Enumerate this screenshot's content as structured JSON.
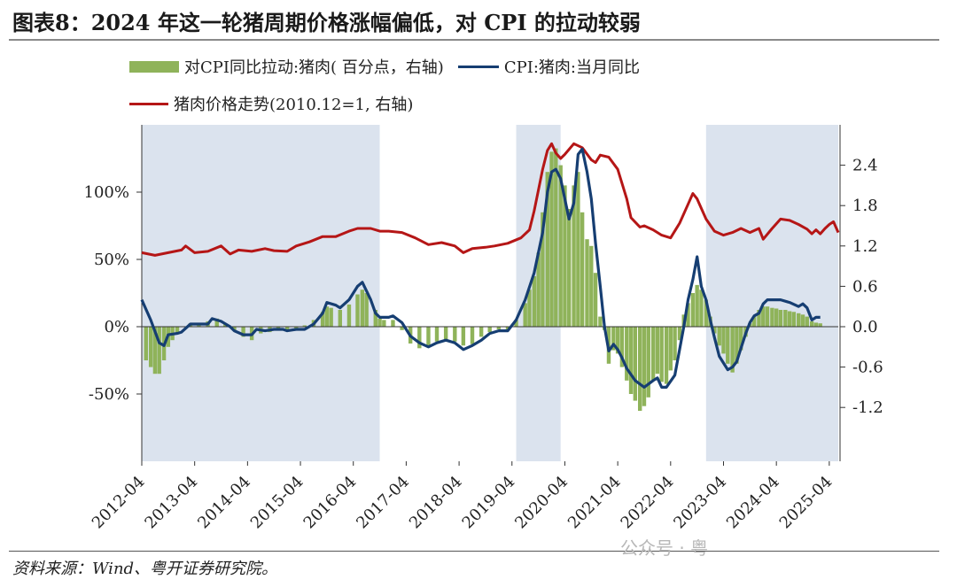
{
  "figure": {
    "title": "图表8：2024 年这一轮猪周期价格涨幅偏低，对 CPI 的拉动较弱",
    "source": "资料来源：Wind、粤开证券研究院。",
    "watermark": "公众号 · 粤"
  },
  "legend": {
    "bar_label": "对CPI同比拉动:猪肉( 百分点，右轴)",
    "blue_label": "CPI:猪肉:当月同比",
    "red_label": "猪肉价格走势(2010.12=1, 右轴)"
  },
  "chart_data": {
    "type": "bar+line",
    "colors": {
      "bar": "#8fb35a",
      "cpi": "#163e72",
      "price": "#b51616",
      "shade": "#dbe3ee"
    },
    "left_axis": {
      "ylim": [
        -100,
        150
      ],
      "ticks": [
        {
          "v": 100,
          "label": "100%"
        },
        {
          "v": 50,
          "label": "50%"
        },
        {
          "v": 0,
          "label": "0%"
        },
        {
          "v": -50,
          "label": "-50%"
        }
      ]
    },
    "right_axis": {
      "ylim": [
        -2.0,
        3.0
      ],
      "ticks": [
        {
          "v": 2.4,
          "label": "2.4"
        },
        {
          "v": 1.8,
          "label": "1.8"
        },
        {
          "v": 1.2,
          "label": "1.2"
        },
        {
          "v": 0.6,
          "label": "0.6"
        },
        {
          "v": 0.0,
          "label": "0.0"
        },
        {
          "v": -0.6,
          "label": "-0.6"
        },
        {
          "v": -1.2,
          "label": "-1.2"
        }
      ]
    },
    "x_range": [
      2012.25,
      2025.42
    ],
    "x_ticks": [
      {
        "v": 2012.25,
        "label": "2012-04"
      },
      {
        "v": 2013.25,
        "label": "2013-04"
      },
      {
        "v": 2014.25,
        "label": "2014-04"
      },
      {
        "v": 2015.25,
        "label": "2015-04"
      },
      {
        "v": 2016.25,
        "label": "2016-04"
      },
      {
        "v": 2017.25,
        "label": "2017-04"
      },
      {
        "v": 2018.25,
        "label": "2018-04"
      },
      {
        "v": 2019.25,
        "label": "2019-04"
      },
      {
        "v": 2020.25,
        "label": "2020-04"
      },
      {
        "v": 2021.25,
        "label": "2021-04"
      },
      {
        "v": 2022.25,
        "label": "2022-04"
      },
      {
        "v": 2023.25,
        "label": "2023-04"
      },
      {
        "v": 2024.25,
        "label": "2024-04"
      },
      {
        "v": 2025.25,
        "label": "2025-04"
      }
    ],
    "shaded_periods": [
      [
        2012.25,
        2016.75
      ],
      [
        2019.33,
        2020.17
      ],
      [
        2022.92,
        2025.42
      ]
    ],
    "cpi_pork_yoy": [
      [
        2012.25,
        20
      ],
      [
        2012.42,
        5
      ],
      [
        2012.58,
        -12
      ],
      [
        2012.67,
        -14
      ],
      [
        2012.75,
        -6
      ],
      [
        2012.92,
        -5
      ],
      [
        2013.0,
        -4
      ],
      [
        2013.17,
        2
      ],
      [
        2013.33,
        2
      ],
      [
        2013.5,
        2
      ],
      [
        2013.58,
        6
      ],
      [
        2013.75,
        4
      ],
      [
        2013.92,
        0
      ],
      [
        2014.0,
        -3
      ],
      [
        2014.17,
        -6
      ],
      [
        2014.33,
        -6
      ],
      [
        2014.42,
        -2
      ],
      [
        2014.58,
        -3
      ],
      [
        2014.75,
        -2
      ],
      [
        2014.92,
        -2
      ],
      [
        2015.0,
        -3
      ],
      [
        2015.17,
        -2
      ],
      [
        2015.33,
        -2
      ],
      [
        2015.5,
        2
      ],
      [
        2015.67,
        10
      ],
      [
        2015.75,
        18
      ],
      [
        2015.92,
        16
      ],
      [
        2016.0,
        14
      ],
      [
        2016.17,
        20
      ],
      [
        2016.33,
        30
      ],
      [
        2016.42,
        33
      ],
      [
        2016.58,
        20
      ],
      [
        2016.67,
        10
      ],
      [
        2016.75,
        7
      ],
      [
        2016.92,
        7
      ],
      [
        2017.0,
        8
      ],
      [
        2017.17,
        3
      ],
      [
        2017.33,
        -7
      ],
      [
        2017.5,
        -12
      ],
      [
        2017.67,
        -15
      ],
      [
        2017.83,
        -12
      ],
      [
        2018.0,
        -10
      ],
      [
        2018.17,
        -12
      ],
      [
        2018.33,
        -17
      ],
      [
        2018.5,
        -14
      ],
      [
        2018.67,
        -10
      ],
      [
        2018.83,
        -5
      ],
      [
        2019.0,
        -3
      ],
      [
        2019.17,
        -3
      ],
      [
        2019.33,
        5
      ],
      [
        2019.5,
        20
      ],
      [
        2019.67,
        40
      ],
      [
        2019.83,
        70
      ],
      [
        2019.92,
        100
      ],
      [
        2020.0,
        115
      ],
      [
        2020.08,
        117
      ],
      [
        2020.17,
        110
      ],
      [
        2020.25,
        95
      ],
      [
        2020.33,
        80
      ],
      [
        2020.42,
        92
      ],
      [
        2020.5,
        128
      ],
      [
        2020.58,
        132
      ],
      [
        2020.67,
        115
      ],
      [
        2020.75,
        95
      ],
      [
        2020.83,
        62
      ],
      [
        2020.92,
        30
      ],
      [
        2021.0,
        0
      ],
      [
        2021.08,
        -18
      ],
      [
        2021.17,
        -13
      ],
      [
        2021.25,
        -17
      ],
      [
        2021.33,
        -23
      ],
      [
        2021.42,
        -31
      ],
      [
        2021.58,
        -40
      ],
      [
        2021.75,
        -45
      ],
      [
        2021.92,
        -40
      ],
      [
        2022.0,
        -38
      ],
      [
        2022.08,
        -45
      ],
      [
        2022.17,
        -45
      ],
      [
        2022.33,
        -36
      ],
      [
        2022.5,
        0
      ],
      [
        2022.58,
        20
      ],
      [
        2022.67,
        35
      ],
      [
        2022.75,
        52
      ],
      [
        2022.83,
        30
      ],
      [
        2022.92,
        20
      ],
      [
        2023.0,
        5
      ],
      [
        2023.08,
        -8
      ],
      [
        2023.17,
        -22
      ],
      [
        2023.25,
        -27
      ],
      [
        2023.33,
        -32
      ],
      [
        2023.42,
        -30
      ],
      [
        2023.5,
        -26
      ],
      [
        2023.58,
        -16
      ],
      [
        2023.67,
        -5
      ],
      [
        2023.75,
        3
      ],
      [
        2023.83,
        8
      ],
      [
        2023.92,
        10
      ],
      [
        2024.0,
        17
      ],
      [
        2024.08,
        20
      ],
      [
        2024.17,
        20
      ],
      [
        2024.33,
        20
      ],
      [
        2024.5,
        18
      ],
      [
        2024.67,
        15
      ],
      [
        2024.75,
        17
      ],
      [
        2024.83,
        14
      ],
      [
        2024.92,
        5
      ],
      [
        2025.0,
        7
      ],
      [
        2025.08,
        7
      ]
    ],
    "pork_price_index": [
      [
        2012.25,
        1.1
      ],
      [
        2012.5,
        1.06
      ],
      [
        2012.75,
        1.1
      ],
      [
        2013.0,
        1.14
      ],
      [
        2013.08,
        1.2
      ],
      [
        2013.25,
        1.1
      ],
      [
        2013.5,
        1.12
      ],
      [
        2013.75,
        1.2
      ],
      [
        2013.92,
        1.08
      ],
      [
        2014.08,
        1.14
      ],
      [
        2014.33,
        1.12
      ],
      [
        2014.58,
        1.16
      ],
      [
        2014.75,
        1.13
      ],
      [
        2015.0,
        1.12
      ],
      [
        2015.17,
        1.2
      ],
      [
        2015.42,
        1.26
      ],
      [
        2015.67,
        1.34
      ],
      [
        2015.92,
        1.34
      ],
      [
        2016.17,
        1.42
      ],
      [
        2016.33,
        1.46
      ],
      [
        2016.58,
        1.46
      ],
      [
        2016.75,
        1.42
      ],
      [
        2016.92,
        1.42
      ],
      [
        2017.17,
        1.4
      ],
      [
        2017.42,
        1.32
      ],
      [
        2017.67,
        1.22
      ],
      [
        2017.92,
        1.25
      ],
      [
        2018.17,
        1.2
      ],
      [
        2018.33,
        1.1
      ],
      [
        2018.5,
        1.16
      ],
      [
        2018.75,
        1.18
      ],
      [
        2018.92,
        1.2
      ],
      [
        2019.17,
        1.24
      ],
      [
        2019.42,
        1.32
      ],
      [
        2019.58,
        1.44
      ],
      [
        2019.67,
        1.72
      ],
      [
        2019.83,
        2.34
      ],
      [
        2019.92,
        2.62
      ],
      [
        2020.0,
        2.72
      ],
      [
        2020.08,
        2.58
      ],
      [
        2020.17,
        2.5
      ],
      [
        2020.25,
        2.56
      ],
      [
        2020.42,
        2.72
      ],
      [
        2020.58,
        2.66
      ],
      [
        2020.75,
        2.48
      ],
      [
        2020.83,
        2.44
      ],
      [
        2020.92,
        2.55
      ],
      [
        2021.08,
        2.52
      ],
      [
        2021.25,
        2.34
      ],
      [
        2021.42,
        1.9
      ],
      [
        2021.5,
        1.62
      ],
      [
        2021.67,
        1.48
      ],
      [
        2021.75,
        1.5
      ],
      [
        2021.92,
        1.44
      ],
      [
        2022.08,
        1.36
      ],
      [
        2022.25,
        1.32
      ],
      [
        2022.42,
        1.54
      ],
      [
        2022.58,
        1.82
      ],
      [
        2022.67,
        1.98
      ],
      [
        2022.75,
        1.9
      ],
      [
        2022.92,
        1.6
      ],
      [
        2023.08,
        1.42
      ],
      [
        2023.25,
        1.36
      ],
      [
        2023.42,
        1.4
      ],
      [
        2023.58,
        1.46
      ],
      [
        2023.75,
        1.4
      ],
      [
        2023.92,
        1.46
      ],
      [
        2024.0,
        1.3
      ],
      [
        2024.17,
        1.46
      ],
      [
        2024.33,
        1.6
      ],
      [
        2024.5,
        1.58
      ],
      [
        2024.67,
        1.52
      ],
      [
        2024.83,
        1.45
      ],
      [
        2024.92,
        1.38
      ],
      [
        2025.0,
        1.44
      ],
      [
        2025.08,
        1.38
      ],
      [
        2025.17,
        1.46
      ],
      [
        2025.25,
        1.52
      ],
      [
        2025.33,
        1.56
      ],
      [
        2025.42,
        1.4
      ]
    ],
    "pork_cpi_contribution": [
      [
        2012.33,
        -0.5
      ],
      [
        2012.42,
        -0.6
      ],
      [
        2012.5,
        -0.7
      ],
      [
        2012.58,
        -0.7
      ],
      [
        2012.67,
        -0.5
      ],
      [
        2012.75,
        -0.3
      ],
      [
        2012.83,
        -0.2
      ],
      [
        2012.92,
        -0.1
      ],
      [
        2013.0,
        0.0
      ],
      [
        2013.17,
        0.05
      ],
      [
        2013.33,
        0.05
      ],
      [
        2013.5,
        0.08
      ],
      [
        2013.67,
        0.12
      ],
      [
        2013.83,
        0.05
      ],
      [
        2014.0,
        -0.05
      ],
      [
        2014.17,
        -0.15
      ],
      [
        2014.33,
        -0.2
      ],
      [
        2014.5,
        -0.1
      ],
      [
        2014.67,
        -0.08
      ],
      [
        2014.83,
        -0.05
      ],
      [
        2015.0,
        -0.04
      ],
      [
        2015.17,
        -0.03
      ],
      [
        2015.33,
        0.02
      ],
      [
        2015.5,
        0.1
      ],
      [
        2015.67,
        0.22
      ],
      [
        2015.75,
        0.3
      ],
      [
        2015.83,
        0.28
      ],
      [
        2016.0,
        0.25
      ],
      [
        2016.17,
        0.33
      ],
      [
        2016.33,
        0.48
      ],
      [
        2016.42,
        0.55
      ],
      [
        2016.5,
        0.5
      ],
      [
        2016.67,
        0.25
      ],
      [
        2016.75,
        0.12
      ],
      [
        2016.83,
        0.1
      ],
      [
        2017.0,
        0.1
      ],
      [
        2017.17,
        -0.05
      ],
      [
        2017.33,
        -0.25
      ],
      [
        2017.5,
        -0.32
      ],
      [
        2017.67,
        -0.28
      ],
      [
        2017.83,
        -0.22
      ],
      [
        2018.0,
        -0.2
      ],
      [
        2018.17,
        -0.22
      ],
      [
        2018.33,
        -0.28
      ],
      [
        2018.5,
        -0.26
      ],
      [
        2018.67,
        -0.15
      ],
      [
        2018.83,
        -0.08
      ],
      [
        2019.0,
        -0.04
      ],
      [
        2019.17,
        -0.05
      ],
      [
        2019.33,
        0.1
      ],
      [
        2019.5,
        0.35
      ],
      [
        2019.58,
        0.55
      ],
      [
        2019.67,
        0.75
      ],
      [
        2019.75,
        1.1
      ],
      [
        2019.83,
        1.7
      ],
      [
        2019.92,
        2.3
      ],
      [
        2020.0,
        2.6
      ],
      [
        2020.08,
        2.65
      ],
      [
        2020.17,
        2.4
      ],
      [
        2020.25,
        2.1
      ],
      [
        2020.33,
        1.75
      ],
      [
        2020.42,
        2.1
      ],
      [
        2020.5,
        2.3
      ],
      [
        2020.58,
        1.7
      ],
      [
        2020.67,
        1.3
      ],
      [
        2020.75,
        1.2
      ],
      [
        2020.83,
        0.8
      ],
      [
        2020.92,
        0.15
      ],
      [
        2021.0,
        -0.05
      ],
      [
        2021.08,
        -0.55
      ],
      [
        2021.17,
        -0.35
      ],
      [
        2021.25,
        -0.4
      ],
      [
        2021.33,
        -0.6
      ],
      [
        2021.42,
        -0.8
      ],
      [
        2021.5,
        -1.0
      ],
      [
        2021.58,
        -1.1
      ],
      [
        2021.67,
        -1.25
      ],
      [
        2021.75,
        -1.18
      ],
      [
        2021.83,
        -1.05
      ],
      [
        2021.92,
        -0.8
      ],
      [
        2022.0,
        -0.7
      ],
      [
        2022.08,
        -0.82
      ],
      [
        2022.17,
        -0.85
      ],
      [
        2022.25,
        -0.65
      ],
      [
        2022.33,
        -0.5
      ],
      [
        2022.42,
        -0.2
      ],
      [
        2022.5,
        0.18
      ],
      [
        2022.58,
        0.35
      ],
      [
        2022.67,
        0.5
      ],
      [
        2022.75,
        0.62
      ],
      [
        2022.83,
        0.55
      ],
      [
        2022.92,
        0.4
      ],
      [
        2023.0,
        0.15
      ],
      [
        2023.08,
        -0.1
      ],
      [
        2023.17,
        -0.28
      ],
      [
        2023.25,
        -0.4
      ],
      [
        2023.33,
        -0.55
      ],
      [
        2023.42,
        -0.68
      ],
      [
        2023.5,
        -0.55
      ],
      [
        2023.58,
        -0.35
      ],
      [
        2023.67,
        -0.15
      ],
      [
        2023.75,
        0.05
      ],
      [
        2023.83,
        0.15
      ],
      [
        2023.92,
        0.25
      ],
      [
        2024.0,
        0.3
      ],
      [
        2024.08,
        0.3
      ],
      [
        2024.17,
        0.28
      ],
      [
        2024.25,
        0.27
      ],
      [
        2024.33,
        0.25
      ],
      [
        2024.42,
        0.25
      ],
      [
        2024.5,
        0.23
      ],
      [
        2024.58,
        0.22
      ],
      [
        2024.67,
        0.2
      ],
      [
        2024.75,
        0.18
      ],
      [
        2024.83,
        0.15
      ],
      [
        2024.92,
        0.08
      ],
      [
        2025.0,
        0.06
      ],
      [
        2025.08,
        0.05
      ]
    ]
  }
}
